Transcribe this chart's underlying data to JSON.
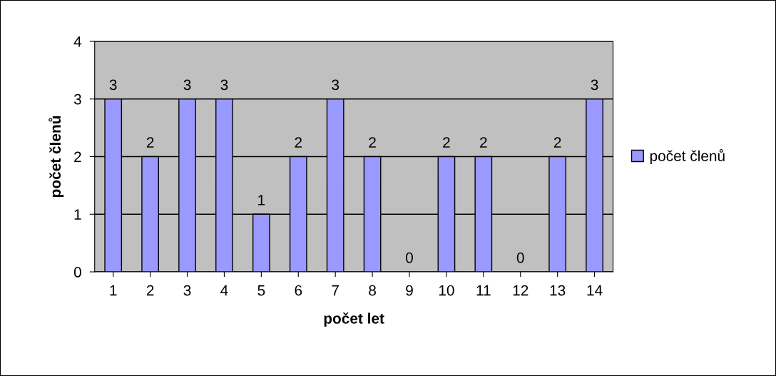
{
  "chart_data": {
    "type": "bar",
    "xlabel": "počet let",
    "ylabel": "počet členů",
    "categories": [
      "1",
      "2",
      "3",
      "4",
      "5",
      "6",
      "7",
      "8",
      "9",
      "10",
      "11",
      "12",
      "13",
      "14"
    ],
    "series": [
      {
        "name": "počet členů",
        "color": "#9999ff",
        "values": [
          3,
          2,
          3,
          3,
          1,
          2,
          3,
          2,
          0,
          2,
          2,
          0,
          2,
          3
        ]
      }
    ],
    "ylim": [
      0,
      4
    ],
    "yticks": [
      0,
      1,
      2,
      3,
      4
    ],
    "grid": "y",
    "legend": "right",
    "data_labels": true
  }
}
